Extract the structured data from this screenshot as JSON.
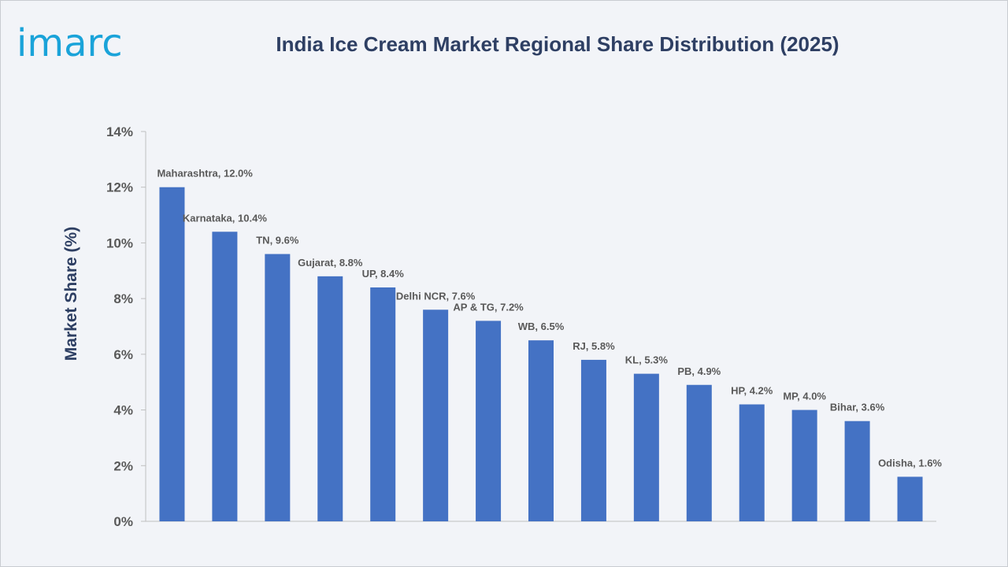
{
  "logo": {
    "text": "imarc"
  },
  "title": "India Ice Cream Market Regional Share Distribution (2025)",
  "chart_data": {
    "type": "bar",
    "title": "India Ice Cream Market Regional Share Distribution (2025)",
    "xlabel": "",
    "ylabel": "Market Share (%)",
    "ylim": [
      0,
      14
    ],
    "yticks": [
      0,
      2,
      4,
      6,
      8,
      10,
      12,
      14
    ],
    "ytick_labels": [
      "0%",
      "2%",
      "4%",
      "6%",
      "8%",
      "10%",
      "12%",
      "14%"
    ],
    "grid": false,
    "legend": "none",
    "bar_color": "#4472c4",
    "categories": [
      "Maharashtra",
      "Karnataka",
      "TN",
      "Gujarat",
      "UP",
      "Delhi NCR",
      "AP & TG",
      "WB",
      "RJ",
      "KL",
      "PB",
      "HP",
      "MP",
      "Bihar",
      "Odisha"
    ],
    "values": [
      12.0,
      10.4,
      9.6,
      8.8,
      8.4,
      7.6,
      7.2,
      6.5,
      5.8,
      5.3,
      4.9,
      4.2,
      4.0,
      3.6,
      1.6
    ],
    "data_labels": [
      "Maharashtra, 12.0%",
      "Karnataka, 10.4%",
      "TN, 9.6%",
      "Gujarat, 8.8%",
      "UP, 8.4%",
      "Delhi NCR, 7.6%",
      "AP & TG, 7.2%",
      "WB, 6.5%",
      "RJ, 5.8%",
      "KL, 5.3%",
      "PB, 4.9%",
      "HP, 4.2%",
      "MP, 4.0%",
      "Bihar, 3.6%",
      "Odisha, 1.6%"
    ]
  }
}
